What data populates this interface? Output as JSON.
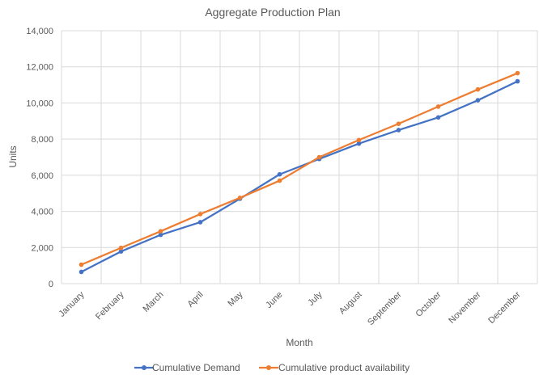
{
  "chart_data": {
    "type": "line",
    "title": "Aggregate Production Plan",
    "xlabel": "Month",
    "ylabel": "Units",
    "categories": [
      "January",
      "February",
      "March",
      "April",
      "May",
      "June",
      "July",
      "August",
      "September",
      "October",
      "November",
      "December"
    ],
    "ylim": [
      0,
      14000
    ],
    "yticks": [
      0,
      2000,
      4000,
      6000,
      8000,
      10000,
      12000,
      14000
    ],
    "ytick_labels": [
      "0",
      "2,000",
      "4,000",
      "6,000",
      "8,000",
      "10,000",
      "12,000",
      "14,000"
    ],
    "grid": true,
    "legend_position": "bottom",
    "series": [
      {
        "name": "Cumulative Demand",
        "color": "#4472c4",
        "values": [
          650,
          1780,
          2700,
          3400,
          4700,
          6050,
          6900,
          7750,
          8500,
          9200,
          10150,
          11200
        ]
      },
      {
        "name": "Cumulative product availability",
        "color": "#ed7d31",
        "values": [
          1050,
          1980,
          2900,
          3850,
          4750,
          5700,
          7000,
          7950,
          8850,
          9800,
          10750,
          11650
        ]
      }
    ]
  }
}
